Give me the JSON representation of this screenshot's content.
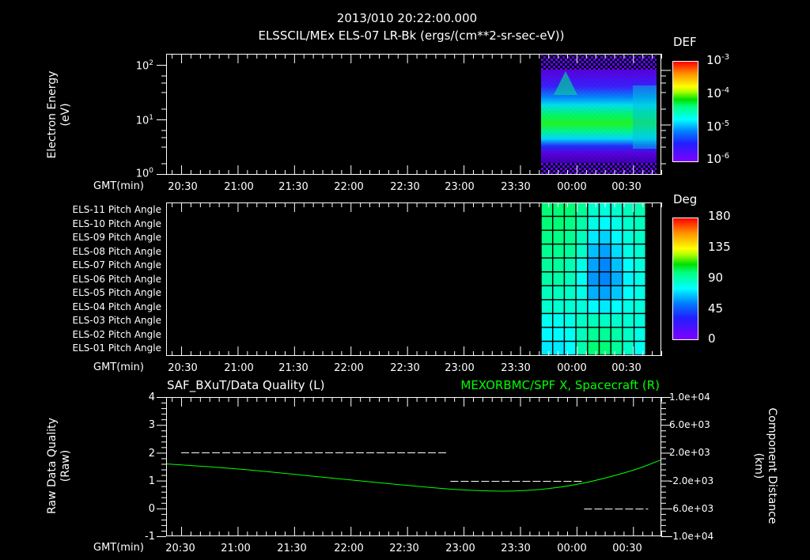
{
  "header": {
    "timestamp": "2013/010 20:22:00.000",
    "subtitle": "ELSSCIL/MEx ELS-07 LR-Bk  (ergs/(cm**2-sr-sec-eV))"
  },
  "panel1": {
    "ylabel_line1": "Electron Energy",
    "ylabel_line2": "(eV)",
    "yticks": [
      {
        "base": "10",
        "exp": "2"
      },
      {
        "base": "10",
        "exp": "1"
      },
      {
        "base": "10",
        "exp": "0"
      }
    ],
    "xaxis_label": "GMT(min)",
    "colorbar": {
      "title": "DEF",
      "ticks": [
        {
          "base": "10",
          "exp": "-3"
        },
        {
          "base": "10",
          "exp": "-4"
        },
        {
          "base": "10",
          "exp": "-5"
        },
        {
          "base": "10",
          "exp": "-6"
        }
      ]
    }
  },
  "panel2": {
    "row_labels": [
      "ELS-11 Pitch Angle",
      "ELS-10 Pitch Angle",
      "ELS-09 Pitch Angle",
      "ELS-08 Pitch Angle",
      "ELS-07 Pitch Angle",
      "ELS-06 Pitch Angle",
      "ELS-05 Pitch Angle",
      "ELS-04 Pitch Angle",
      "ELS-03 Pitch Angle",
      "ELS-02 Pitch Angle",
      "ELS-01 Pitch Angle"
    ],
    "xaxis_label": "GMT(min)",
    "colorbar": {
      "title": "Deg",
      "ticks": [
        "180",
        "135",
        "90",
        "45",
        "0"
      ]
    }
  },
  "panel3": {
    "left_title": "SAF_BXuT/Data Quality (L)",
    "right_title": "MEXORBMC/SPF X, Spacecraft (R)",
    "right_title_color": "#00ff00",
    "ylabel_left_line1": "Raw Data Quality",
    "ylabel_left_line2": "(Raw)",
    "yticks_left": [
      "4",
      "3",
      "2",
      "1",
      "0",
      "-1"
    ],
    "ylabel_right_line1": "Component Distance",
    "ylabel_right_line2": "(km)",
    "yticks_right": [
      "1.0e+04",
      "6.0e+03",
      "2.0e+03",
      "-2.0e+03",
      "-6.0e+03",
      "-1.0e+04"
    ],
    "xaxis_label": "GMT(min)"
  },
  "xtick_labels": [
    "20:30",
    "21:00",
    "21:30",
    "22:00",
    "22:30",
    "23:00",
    "23:30",
    "00:00",
    "00:30"
  ],
  "chart_data": [
    {
      "type": "heatmap",
      "title": "ELSSCIL/MEx ELS-07 LR-Bk (ergs/(cm**2-sr-sec-eV))",
      "xlabel": "GMT(min)",
      "ylabel": "Electron Energy (eV)",
      "yscale": "log",
      "ylim": [
        1,
        200
      ],
      "xlim": [
        "20:22",
        "00:45"
      ],
      "x_tick_labels": [
        "20:30",
        "21:00",
        "21:30",
        "22:00",
        "22:30",
        "23:00",
        "23:30",
        "00:00",
        "00:30"
      ],
      "colorbar": {
        "label": "DEF",
        "scale": "log",
        "range": [
          1e-06,
          0.001
        ]
      },
      "data_span": [
        "23:44",
        "00:43"
      ],
      "description": "Data only from ~23:44 onward; peak DEF ~1e-4 (green) centered near 10-20 eV, band from ~4 to ~40 eV, peak broadens to ~60 eV near 23:53; noisy purple 1e-6 background at low and high energies"
    },
    {
      "type": "heatmap",
      "title": "ELS Pitch Angle",
      "xlabel": "GMT(min)",
      "categories": [
        "ELS-11",
        "ELS-10",
        "ELS-09",
        "ELS-08",
        "ELS-07",
        "ELS-06",
        "ELS-05",
        "ELS-04",
        "ELS-03",
        "ELS-02",
        "ELS-01"
      ],
      "colorbar": {
        "label": "Deg",
        "range": [
          0,
          180
        ],
        "ticks": [
          0,
          45,
          90,
          135,
          180
        ]
      },
      "time_bins": 9,
      "data_span": [
        "23:44",
        "00:38"
      ],
      "values_deg": [
        [
          100,
          100,
          100,
          95,
          85,
          82,
          85,
          88,
          90
        ],
        [
          100,
          100,
          98,
          92,
          80,
          75,
          80,
          85,
          88
        ],
        [
          98,
          98,
          96,
          88,
          72,
          68,
          75,
          82,
          86
        ],
        [
          96,
          96,
          94,
          85,
          65,
          60,
          70,
          80,
          84
        ],
        [
          94,
          94,
          90,
          80,
          60,
          55,
          65,
          76,
          82
        ],
        [
          92,
          92,
          88,
          78,
          58,
          55,
          62,
          74,
          80
        ],
        [
          88,
          88,
          86,
          80,
          62,
          60,
          66,
          76,
          80
        ],
        [
          84,
          84,
          84,
          82,
          75,
          72,
          76,
          80,
          82
        ],
        [
          78,
          78,
          80,
          86,
          88,
          86,
          85,
          84,
          82
        ],
        [
          75,
          75,
          78,
          88,
          95,
          95,
          92,
          86,
          80
        ],
        [
          72,
          72,
          76,
          90,
          100,
          100,
          94,
          86,
          78
        ]
      ]
    },
    {
      "type": "line",
      "title": "SAF_BXuT/Data Quality (L) / MEXORBMC/SPF X, Spacecraft (R)",
      "xlabel": "GMT(min)",
      "x_tick_labels": [
        "20:30",
        "21:00",
        "21:30",
        "22:00",
        "22:30",
        "23:00",
        "23:30",
        "00:00",
        "00:30"
      ],
      "ylim_left": [
        -1,
        4
      ],
      "ylim_right": [
        -10000,
        10000
      ],
      "series": [
        {
          "name": "SAF_BXuT/Data Quality",
          "axis": "left",
          "style": "dashed",
          "color": "#ffffff",
          "x": [
            "20:30",
            "22:52",
            "22:53",
            "00:03",
            "00:04",
            "00:38"
          ],
          "values": [
            2,
            2,
            1,
            1,
            0,
            0
          ]
        },
        {
          "name": "MEXORBMC/SPF X, Spacecraft",
          "axis": "right",
          "color": "#00ff00",
          "x": [
            "20:22",
            "21:00",
            "21:30",
            "22:00",
            "22:30",
            "23:00",
            "23:30",
            "00:00",
            "00:30",
            "00:45"
          ],
          "values": [
            400,
            -300,
            -1100,
            -1900,
            -2700,
            -3400,
            -3600,
            -2700,
            -600,
            1000
          ]
        }
      ]
    }
  ]
}
